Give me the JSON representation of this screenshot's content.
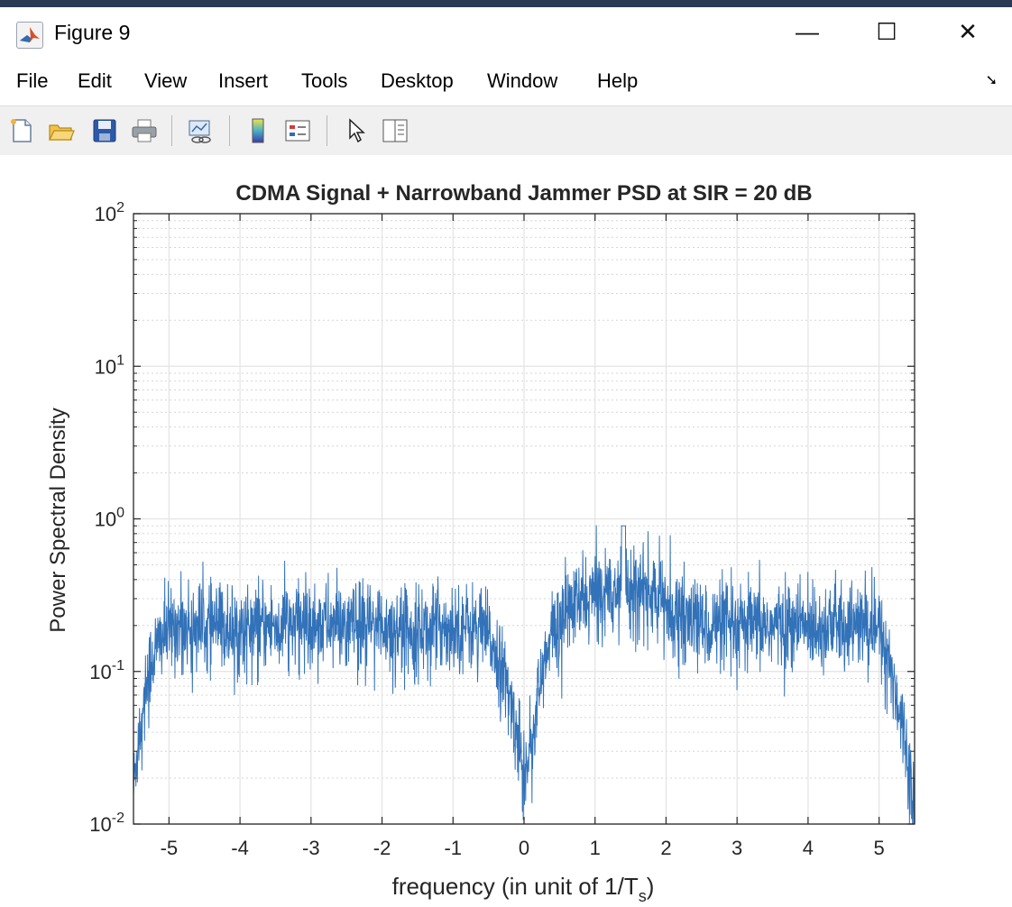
{
  "window": {
    "title": "Figure 9",
    "controls": {
      "minimize": "—",
      "maximize": "☐",
      "close": "✕"
    }
  },
  "menu": {
    "items": [
      "File",
      "Edit",
      "View",
      "Insert",
      "Tools",
      "Desktop",
      "Window",
      "Help"
    ]
  },
  "toolbar": {
    "buttons": [
      "new-figure-icon",
      "open-file-icon",
      "save-icon",
      "print-icon",
      "link-plot-icon",
      "insert-colorbar-icon",
      "insert-legend-icon",
      "edit-plot-pointer-icon",
      "property-inspector-icon"
    ]
  },
  "chart_data": {
    "type": "line",
    "title": "CDMA Signal + Narrowband Jammer PSD at SIR = 20 dB",
    "xlabel": "frequency (in unit of 1/T",
    "xlabel_subscript": "s",
    "xlabel_suffix": ")",
    "ylabel": "Power Spectral Density",
    "xlim": [
      -5.5,
      5.5
    ],
    "ylim": [
      0.01,
      100
    ],
    "yscale": "log",
    "grid": true,
    "minor_grid": true,
    "x_ticks": [
      "-5",
      "-4",
      "-3",
      "-2",
      "-1",
      "0",
      "1",
      "2",
      "3",
      "4",
      "5"
    ],
    "y_ticks": [
      {
        "base": "10",
        "exp": "-2"
      },
      {
        "base": "10",
        "exp": "-1"
      },
      {
        "base": "10",
        "exp": "0"
      },
      {
        "base": "10",
        "exp": "1"
      },
      {
        "base": "10",
        "exp": "2"
      }
    ],
    "series": [
      {
        "color": "#3272b8",
        "envelope": {
          "x": [
            -5.5,
            -5.45,
            -5.35,
            -5.25,
            -5.1,
            -4.9,
            -4.5,
            -4.0,
            -3.5,
            -3.0,
            -2.5,
            -2.0,
            -1.5,
            -1.0,
            -0.6,
            -0.4,
            -0.25,
            -0.1,
            0.0,
            0.1,
            0.25,
            0.4,
            0.6,
            0.9,
            1.2,
            1.4,
            1.6,
            1.9,
            2.2,
            2.6,
            3.0,
            3.5,
            4.0,
            4.5,
            4.9,
            5.05,
            5.2,
            5.35,
            5.45,
            5.5
          ],
          "y": [
            0.017,
            0.03,
            0.07,
            0.12,
            0.17,
            0.2,
            0.2,
            0.19,
            0.2,
            0.21,
            0.2,
            0.2,
            0.19,
            0.2,
            0.19,
            0.14,
            0.08,
            0.04,
            0.022,
            0.035,
            0.09,
            0.18,
            0.25,
            0.3,
            0.35,
            0.38,
            0.35,
            0.3,
            0.23,
            0.2,
            0.19,
            0.2,
            0.2,
            0.2,
            0.2,
            0.17,
            0.09,
            0.04,
            0.02,
            0.015
          ]
        },
        "peak": 0.9,
        "floor": 0.01
      }
    ]
  }
}
